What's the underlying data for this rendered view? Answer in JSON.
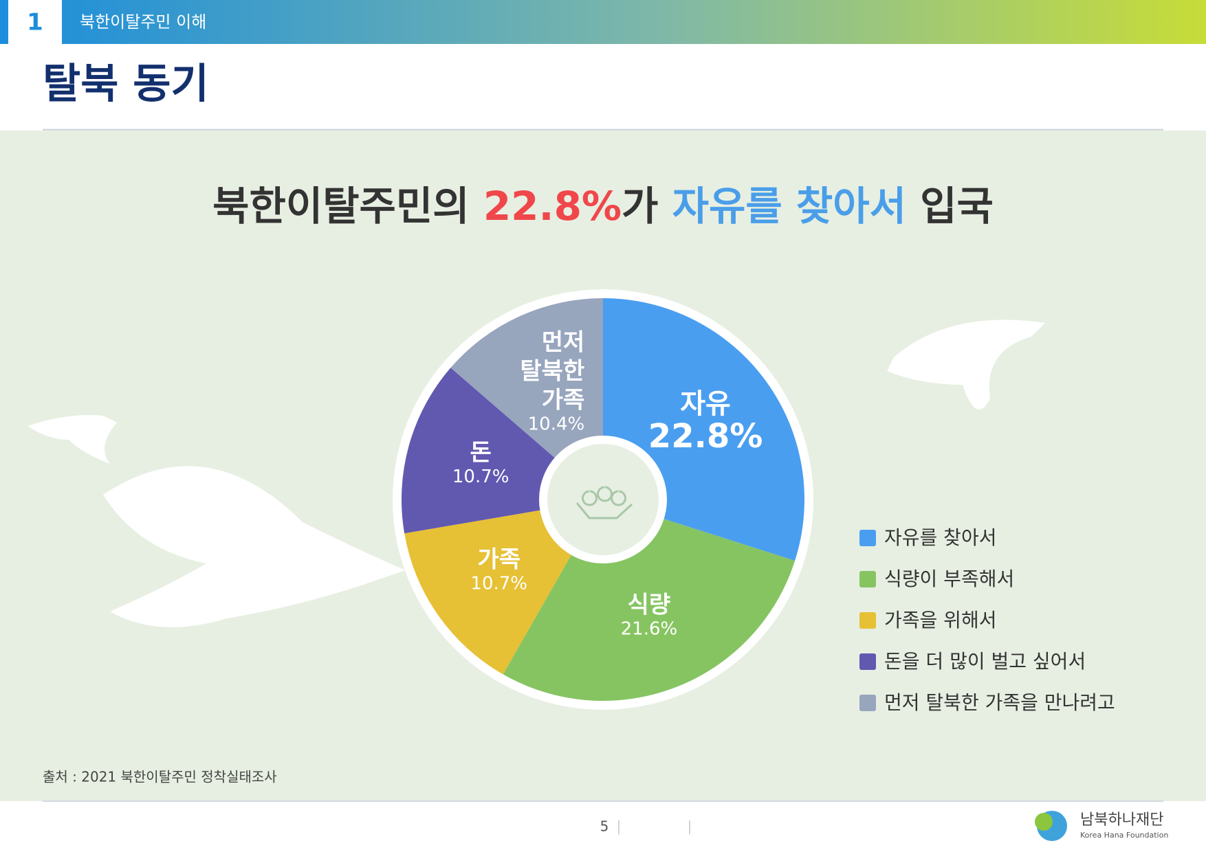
{
  "header": {
    "section_number": "1",
    "section_title": "북한이탈주민 이해"
  },
  "page_title": "탈북 동기",
  "chart_data": {
    "type": "pie",
    "headline": [
      {
        "text": "북한이탈주민의 ",
        "color": "#333333"
      },
      {
        "text": "22.8%",
        "color": "#f0474b"
      },
      {
        "text": "가 ",
        "color": "#333333"
      },
      {
        "text": "자유를 찾아서",
        "color": "#4a9ee9"
      },
      {
        "text": " 입국",
        "color": "#333333"
      }
    ],
    "categories": [
      "자유를 찾아서",
      "식량이 부족해서",
      "가족을 위해서",
      "돈을 더 많이 벌고 싶어서",
      "먼저 탈북한 가족을 만나려고"
    ],
    "slice_labels": [
      [
        "자유"
      ],
      [
        "식량"
      ],
      [
        "가족"
      ],
      [
        "돈"
      ],
      [
        "먼저",
        "탈북한",
        "가족"
      ]
    ],
    "values": [
      22.8,
      21.6,
      10.7,
      10.7,
      10.4
    ],
    "value_labels": [
      "22.8%",
      "21.6%",
      "10.7%",
      "10.7%",
      "10.4%"
    ],
    "colors": [
      "#4a9ef0",
      "#86c462",
      "#e6c035",
      "#6158b0",
      "#97a5bd"
    ],
    "legend": "right"
  },
  "source": "출처 : 2021 북한이탈주민 정착실태조사",
  "page_number": "5",
  "logo": {
    "name": "남북하나재단",
    "subtitle": "Korea Hana Foundation"
  }
}
